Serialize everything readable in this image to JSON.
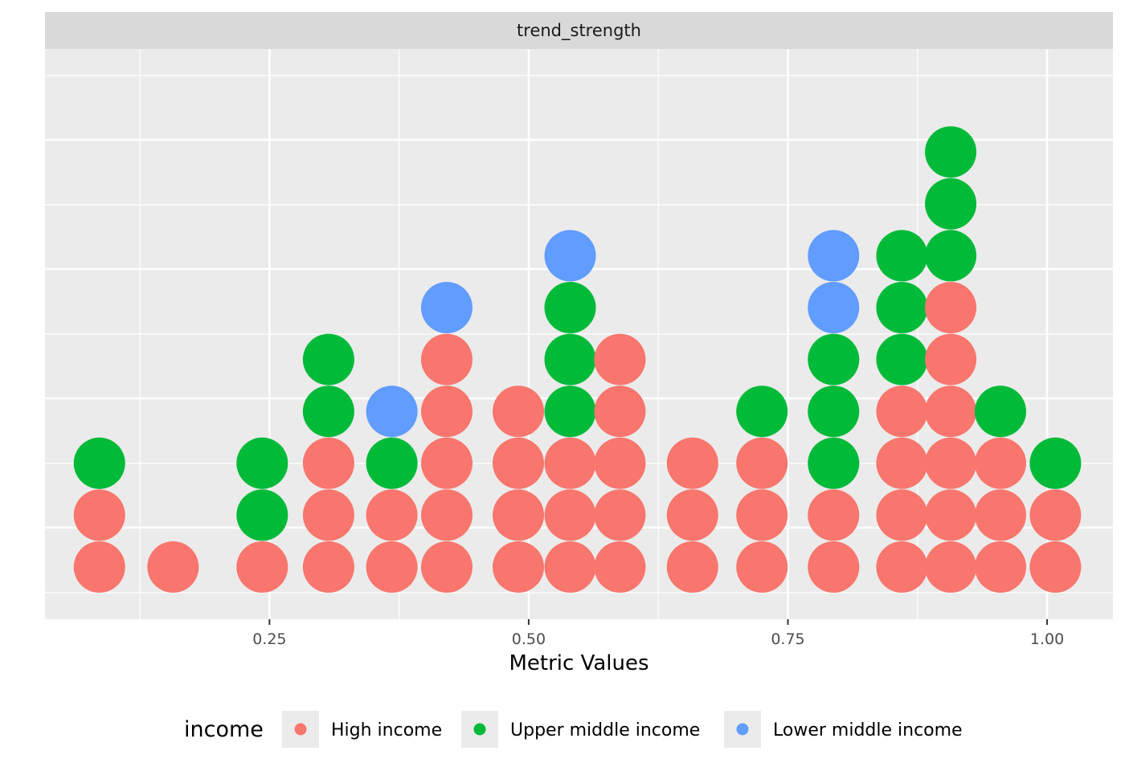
{
  "chart_data": {
    "type": "scatter",
    "subtype": "dotplot",
    "facet_label": "trend_strength",
    "xlabel": "Metric Values",
    "ylabel": "",
    "xlim": [
      0.0335,
      1.0635
    ],
    "ylim": [
      0,
      1
    ],
    "x_ticks": [
      {
        "value": 0.25,
        "label": "0.25"
      },
      {
        "value": 0.5,
        "label": "0.50"
      },
      {
        "value": 0.75,
        "label": "0.75"
      },
      {
        "value": 1.0,
        "label": "1.00"
      }
    ],
    "y_axis_labels_shown": false,
    "grid": true,
    "legend": {
      "title": "income",
      "position": "bottom",
      "items": [
        {
          "name": "High income",
          "color": "#F8766D"
        },
        {
          "name": "Upper middle income",
          "color": "#00BA38"
        },
        {
          "name": "Lower middle income",
          "color": "#619CFF"
        }
      ]
    },
    "stacks": [
      {
        "x": 0.086,
        "dots": [
          "High income",
          "High income",
          "Upper middle income"
        ]
      },
      {
        "x": 0.157,
        "dots": [
          "High income"
        ]
      },
      {
        "x": 0.243,
        "dots": [
          "High income",
          "Upper middle income",
          "Upper middle income"
        ]
      },
      {
        "x": 0.307,
        "dots": [
          "High income",
          "High income",
          "High income",
          "Upper middle income",
          "Upper middle income"
        ]
      },
      {
        "x": 0.368,
        "dots": [
          "High income",
          "High income",
          "Upper middle income",
          "Lower middle income"
        ]
      },
      {
        "x": 0.421,
        "dots": [
          "High income",
          "High income",
          "High income",
          "High income",
          "High income",
          "Lower middle income"
        ]
      },
      {
        "x": 0.49,
        "dots": [
          "High income",
          "High income",
          "High income",
          "High income"
        ]
      },
      {
        "x": 0.54,
        "dots": [
          "High income",
          "High income",
          "High income",
          "Upper middle income",
          "Upper middle income",
          "Upper middle income",
          "Lower middle income"
        ]
      },
      {
        "x": 0.588,
        "dots": [
          "High income",
          "High income",
          "High income",
          "High income",
          "High income"
        ]
      },
      {
        "x": 0.658,
        "dots": [
          "High income",
          "High income",
          "High income"
        ]
      },
      {
        "x": 0.725,
        "dots": [
          "High income",
          "High income",
          "High income",
          "Upper middle income"
        ]
      },
      {
        "x": 0.794,
        "dots": [
          "High income",
          "High income",
          "Upper middle income",
          "Upper middle income",
          "Upper middle income",
          "Lower middle income",
          "Lower middle income"
        ]
      },
      {
        "x": 0.86,
        "dots": [
          "High income",
          "High income",
          "High income",
          "High income",
          "Upper middle income",
          "Upper middle income",
          "Upper middle income"
        ]
      },
      {
        "x": 0.907,
        "dots": [
          "High income",
          "High income",
          "High income",
          "High income",
          "High income",
          "High income",
          "Upper middle income",
          "Upper middle income",
          "Upper middle income"
        ]
      },
      {
        "x": 0.955,
        "dots": [
          "High income",
          "High income",
          "High income",
          "Upper middle income"
        ]
      },
      {
        "x": 1.008,
        "dots": [
          "High income",
          "High income",
          "Upper middle income"
        ]
      }
    ]
  }
}
